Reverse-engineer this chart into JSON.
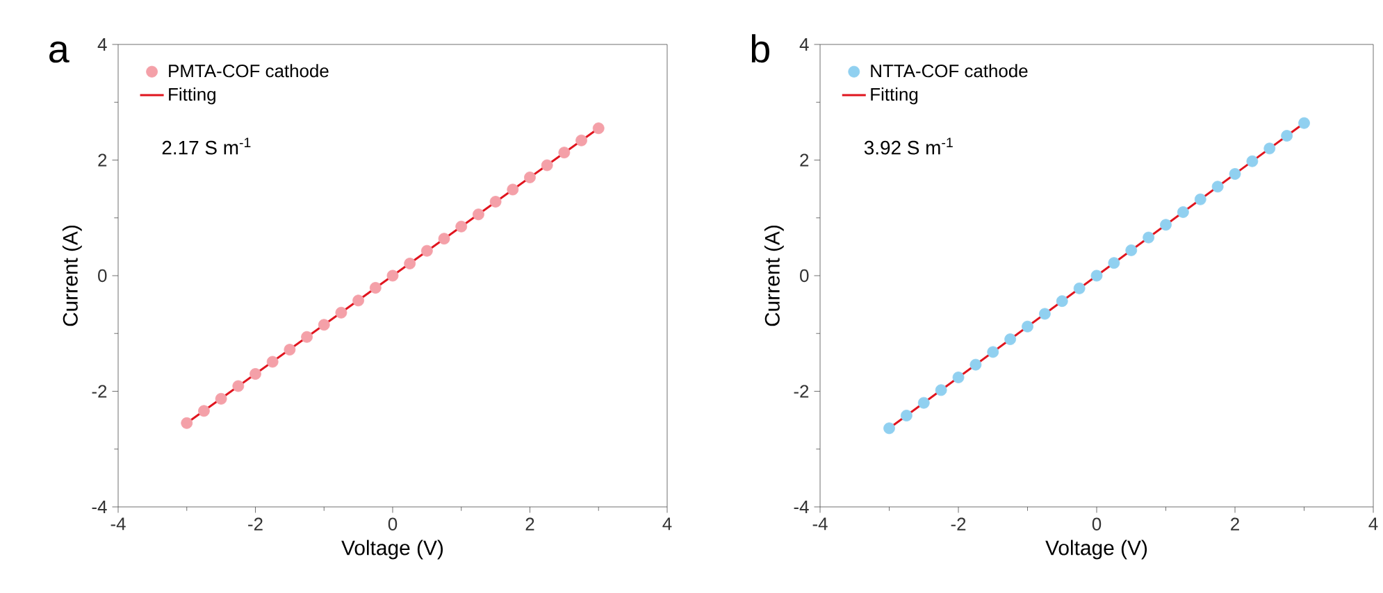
{
  "chart_data": [
    {
      "type": "scatter",
      "xlabel": "Voltage (V)",
      "ylabel": "Current (A)",
      "xlim": [
        -4,
        4
      ],
      "ylim": [
        -4,
        4
      ],
      "xticks": [
        -4,
        -2,
        0,
        2,
        4
      ],
      "yticks": [
        -4,
        -2,
        0,
        2,
        4
      ],
      "legend": "top left",
      "annotations": [
        "a",
        "2.17 S m$^{-1}$"
      ],
      "series": [
        {
          "name": "PMTA-COF cathode",
          "type": "scatter",
          "marker": "circle",
          "color": "#f4a0a8",
          "x": [
            -3,
            -2.75,
            -2.5,
            -2.25,
            -2,
            -1.75,
            -1.5,
            -1.25,
            -1,
            -0.75,
            -0.5,
            -0.25,
            0,
            0.25,
            0.5,
            0.75,
            1,
            1.25,
            1.5,
            1.75,
            2,
            2.25,
            2.5,
            2.75,
            3
          ],
          "values": [
            -2.55,
            -2.34,
            -2.13,
            -1.91,
            -1.7,
            -1.49,
            -1.28,
            -1.06,
            -0.85,
            -0.64,
            -0.43,
            -0.21,
            0,
            0.21,
            0.43,
            0.64,
            0.85,
            1.06,
            1.28,
            1.49,
            1.7,
            1.91,
            2.13,
            2.34,
            2.55
          ]
        },
        {
          "name": "Fitting",
          "type": "line",
          "color": "#e0141e",
          "x": [
            -3,
            3
          ],
          "values": [
            -2.55,
            2.55
          ]
        }
      ]
    },
    {
      "type": "scatter",
      "xlabel": "Voltage (V)",
      "ylabel": "Current (A)",
      "xlim": [
        -4,
        4
      ],
      "ylim": [
        -4,
        4
      ],
      "xticks": [
        -4,
        -2,
        0,
        2,
        4
      ],
      "yticks": [
        -4,
        -2,
        0,
        2,
        4
      ],
      "legend": "top left",
      "annotations": [
        "b",
        "3.92 S m$^{-1}$"
      ],
      "series": [
        {
          "name": "NTTA-COF cathode",
          "type": "scatter",
          "marker": "circle",
          "color": "#90d0f0",
          "x": [
            -3,
            -2.75,
            -2.5,
            -2.25,
            -2,
            -1.75,
            -1.5,
            -1.25,
            -1,
            -0.75,
            -0.5,
            -0.25,
            0,
            0.25,
            0.5,
            0.75,
            1,
            1.25,
            1.5,
            1.75,
            2,
            2.25,
            2.5,
            2.75,
            3
          ],
          "values": [
            -2.64,
            -2.42,
            -2.2,
            -1.98,
            -1.76,
            -1.54,
            -1.32,
            -1.1,
            -0.88,
            -0.66,
            -0.44,
            -0.22,
            0,
            0.22,
            0.44,
            0.66,
            0.88,
            1.1,
            1.32,
            1.54,
            1.76,
            1.98,
            2.2,
            2.42,
            2.64
          ]
        },
        {
          "name": "Fitting",
          "type": "line",
          "color": "#e0141e",
          "x": [
            -3,
            3
          ],
          "values": [
            -2.64,
            2.64
          ]
        }
      ]
    }
  ]
}
